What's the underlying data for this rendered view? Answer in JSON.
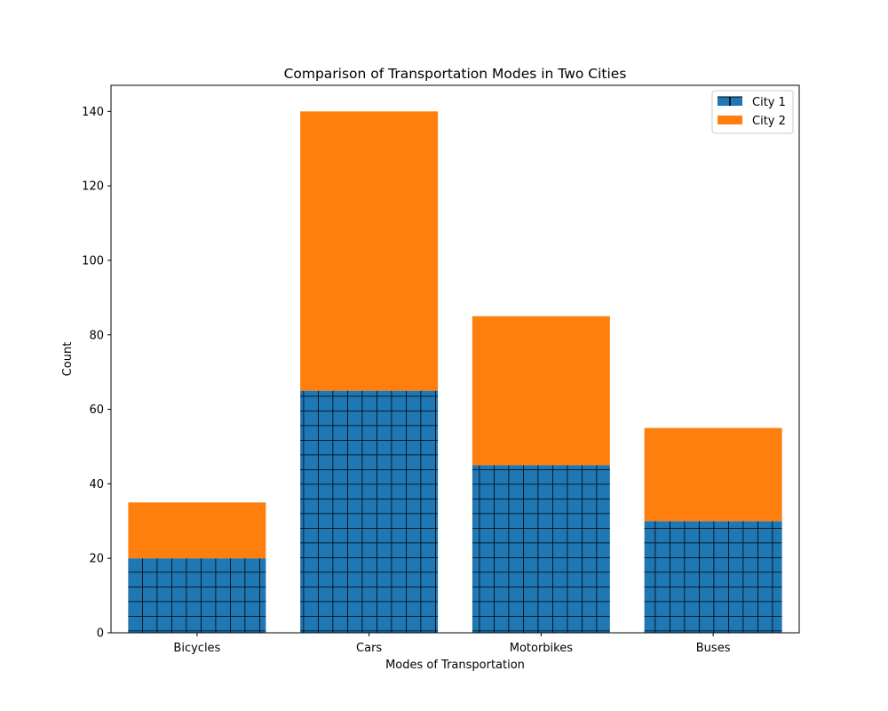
{
  "chart_data": {
    "type": "bar",
    "stacked": true,
    "title": "Comparison of Transportation Modes in Two Cities",
    "xlabel": "Modes of Transportation",
    "ylabel": "Count",
    "categories": [
      "Bicycles",
      "Cars",
      "Motorbikes",
      "Buses"
    ],
    "series": [
      {
        "name": "City 1",
        "values": [
          20,
          65,
          45,
          30
        ],
        "color": "#1f77b4",
        "hatch": "grid"
      },
      {
        "name": "City 2",
        "values": [
          15,
          75,
          40,
          25
        ],
        "color": "#ff7f0e"
      }
    ],
    "ylim": [
      0,
      147
    ],
    "yticks": [
      0,
      20,
      40,
      60,
      80,
      100,
      120,
      140
    ],
    "grid": false,
    "legend_position": "top-right"
  }
}
